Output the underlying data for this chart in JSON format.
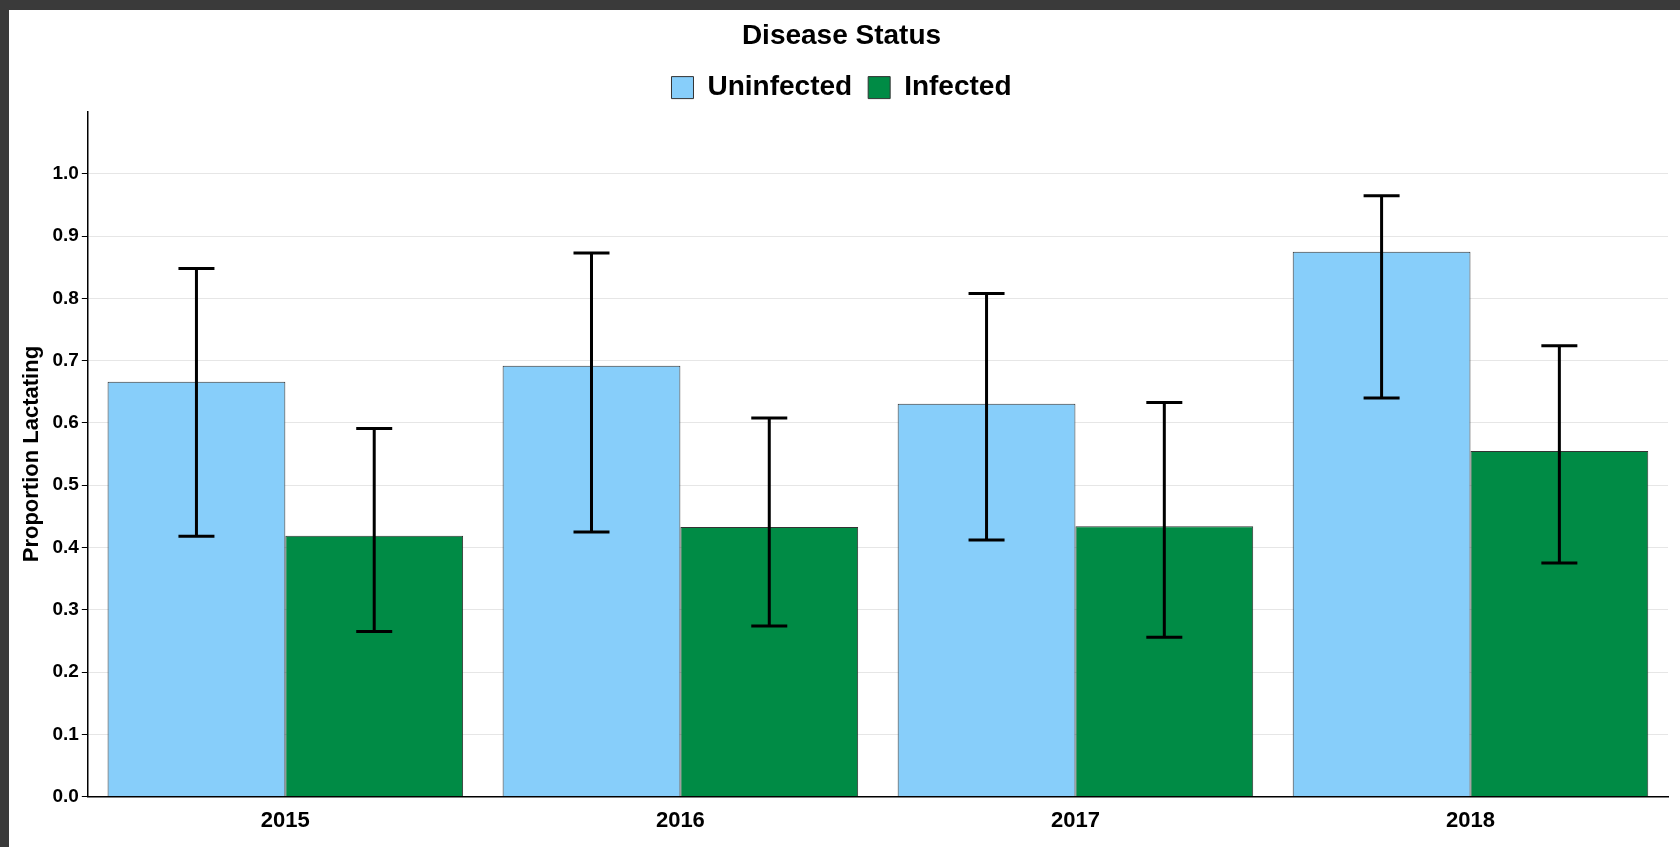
{
  "chart_data": {
    "type": "bar",
    "ylabel": "Proportion Lactating",
    "legend_title": "Disease Status",
    "categories": [
      "2015",
      "2016",
      "2017",
      "2018"
    ],
    "series": [
      {
        "name": "Uninfected",
        "color": "#87cefa",
        "values": [
          0.666,
          0.692,
          0.631,
          0.875
        ],
        "errors": [
          [
            0.418,
            0.848
          ],
          [
            0.425,
            0.873
          ],
          [
            0.412,
            0.808
          ],
          [
            0.64,
            0.965
          ]
        ]
      },
      {
        "name": "Infected",
        "color": "#008b45",
        "values": [
          0.419,
          0.433,
          0.434,
          0.555
        ],
        "errors": [
          [
            0.265,
            0.591
          ],
          [
            0.274,
            0.608
          ],
          [
            0.256,
            0.633
          ],
          [
            0.375,
            0.724
          ]
        ]
      }
    ],
    "ylim": [
      0,
      1.1
    ],
    "yticks": [
      {
        "value": 0,
        "label": "0.0"
      },
      0.1,
      0.2,
      0.3,
      0.4,
      0.5,
      0.6,
      0.7,
      0.8,
      0.9,
      {
        "value": 1,
        "label": "1.0"
      }
    ],
    "grid": "y",
    "legend": "top"
  }
}
